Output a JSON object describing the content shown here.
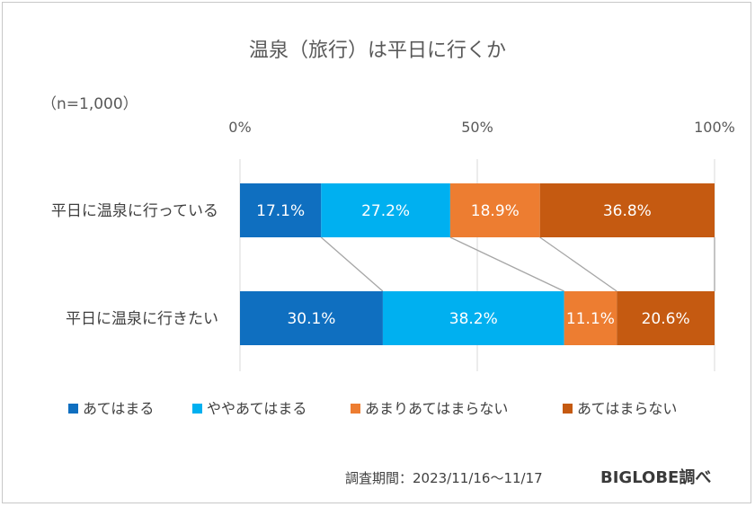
{
  "chart_data": {
    "type": "bar",
    "orientation": "horizontal",
    "stacked": "percent",
    "title": "温泉（旅行）は平日に行くか",
    "sample_note": "（n=1,000）",
    "categories": [
      "平日に温泉に行っている",
      "平日に温泉に行きたい"
    ],
    "series": [
      {
        "name": "あてはまる",
        "values": [
          17.1,
          30.1
        ],
        "labels": [
          "17.1%",
          "30.1%"
        ],
        "color": "#0f6fc0"
      },
      {
        "name": "ややあてはまる",
        "values": [
          27.2,
          38.2
        ],
        "labels": [
          "27.2%",
          "38.2%"
        ],
        "color": "#00b0f0"
      },
      {
        "name": "あまりあてはまらない",
        "values": [
          18.9,
          11.1
        ],
        "labels": [
          "18.9%",
          "11.1%"
        ],
        "color": "#ed7d31"
      },
      {
        "name": "あてはまらない",
        "values": [
          36.8,
          20.6
        ],
        "labels": [
          "36.8%",
          "20.6%"
        ],
        "color": "#c55a11"
      }
    ],
    "x_ticks": [
      "0%",
      "50%",
      "100%"
    ],
    "xlim": [
      0,
      100
    ],
    "grid": true,
    "series_lines": true,
    "legend_position": "bottom"
  },
  "footer": {
    "survey_period": "調査期間：2023/11/16～11/17",
    "brand": "BIGLOBE調べ"
  }
}
